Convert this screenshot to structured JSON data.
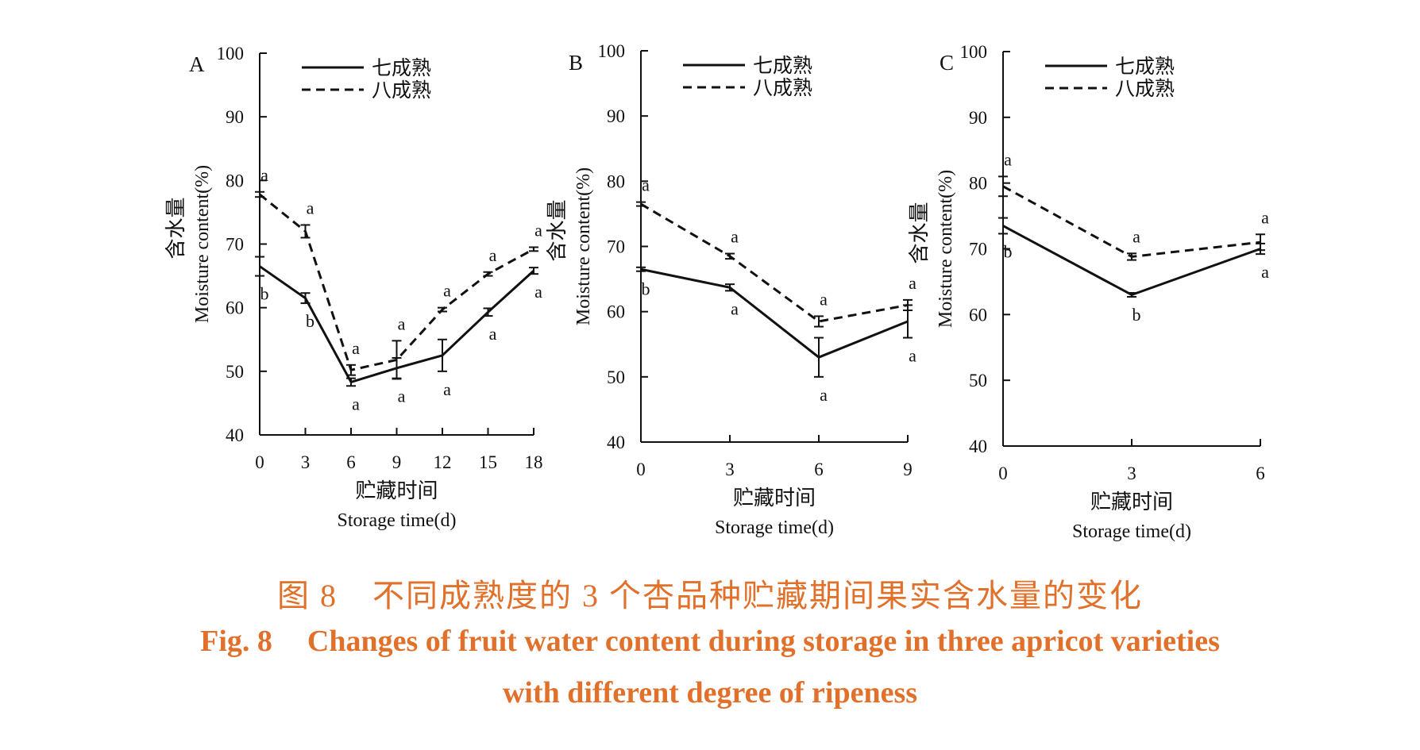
{
  "caption": {
    "cn_label": "图 8",
    "cn_text": "不同成熟度的 3 个杏品种贮藏期间果实含水量的变化",
    "en_label": "Fig. 8",
    "en_text_line1": "Changes of fruit water content during storage in three apricot varieties",
    "en_text_line2": "with different degree of ripeness",
    "color": "#e0702a"
  },
  "chart_data": [
    {
      "type": "line",
      "panel": "A",
      "ylabel_cn": "含水量",
      "ylabel_en": "Moisture content(%)",
      "xlabel_cn": "贮藏时间",
      "xlabel_en": "Storage time(d)",
      "ylim": [
        40,
        100
      ],
      "yticks": [
        40,
        50,
        60,
        70,
        80,
        90,
        100
      ],
      "x": [
        0,
        3,
        6,
        9,
        12,
        15,
        18
      ],
      "legend_position": "top-center",
      "series": [
        {
          "name": "七成熟",
          "style": "solid",
          "values": [
            66.5,
            61.5,
            48.3,
            50.5,
            52.5,
            59.3,
            65.8
          ],
          "errors": [
            1.5,
            0.8,
            0.6,
            1.6,
            2.5,
            0.6,
            0.5
          ],
          "letters": [
            "b",
            "b",
            "a",
            "a",
            "a",
            "a",
            "a"
          ]
        },
        {
          "name": "八成熟",
          "style": "dashed",
          "values": [
            77.8,
            72.0,
            50.2,
            51.8,
            59.7,
            65.3,
            69.2
          ],
          "errors": [
            0.4,
            1.0,
            0.8,
            3.0,
            0.3,
            0.3,
            0.3
          ],
          "letters": [
            "a",
            "a",
            "a",
            "a",
            "a",
            "a",
            "a"
          ]
        }
      ]
    },
    {
      "type": "line",
      "panel": "B",
      "ylabel_cn": "含水量",
      "ylabel_en": "Moisture content(%)",
      "xlabel_cn": "贮藏时间",
      "xlabel_en": "Storage time(d)",
      "ylim": [
        40,
        100
      ],
      "yticks": [
        40,
        50,
        60,
        70,
        80,
        90,
        100
      ],
      "x": [
        0,
        3,
        6,
        9
      ],
      "legend_position": "top-center",
      "series": [
        {
          "name": "七成熟",
          "style": "solid",
          "values": [
            66.5,
            63.7,
            53.0,
            58.5
          ],
          "errors": [
            0.3,
            0.5,
            3.0,
            2.5
          ],
          "letters": [
            "b",
            "a",
            "a",
            "a"
          ]
        },
        {
          "name": "八成熟",
          "style": "dashed",
          "values": [
            76.5,
            68.5,
            58.5,
            61.0
          ],
          "errors": [
            0.3,
            0.4,
            0.8,
            0.8
          ],
          "letters": [
            "a",
            "a",
            "a",
            "a"
          ]
        }
      ]
    },
    {
      "type": "line",
      "panel": "C",
      "ylabel_cn": "含水量",
      "ylabel_en": "Moisture content(%)",
      "xlabel_cn": "贮藏时间",
      "xlabel_en": "Storage time(d)",
      "ylim": [
        40,
        100
      ],
      "yticks": [
        40,
        50,
        60,
        70,
        80,
        90,
        100
      ],
      "x": [
        0,
        3,
        6
      ],
      "legend_position": "top-center",
      "series": [
        {
          "name": "七成熟",
          "style": "solid",
          "values": [
            73.5,
            63.0,
            70.0
          ],
          "errors": [
            1.2,
            0.3,
            0.8
          ],
          "letters": [
            "b",
            "b",
            "a"
          ]
        },
        {
          "name": "八成熟",
          "style": "dashed",
          "values": [
            79.5,
            68.8,
            71.0
          ],
          "errors": [
            1.5,
            0.5,
            1.2
          ],
          "letters": [
            "a",
            "a",
            "a"
          ]
        }
      ]
    }
  ]
}
